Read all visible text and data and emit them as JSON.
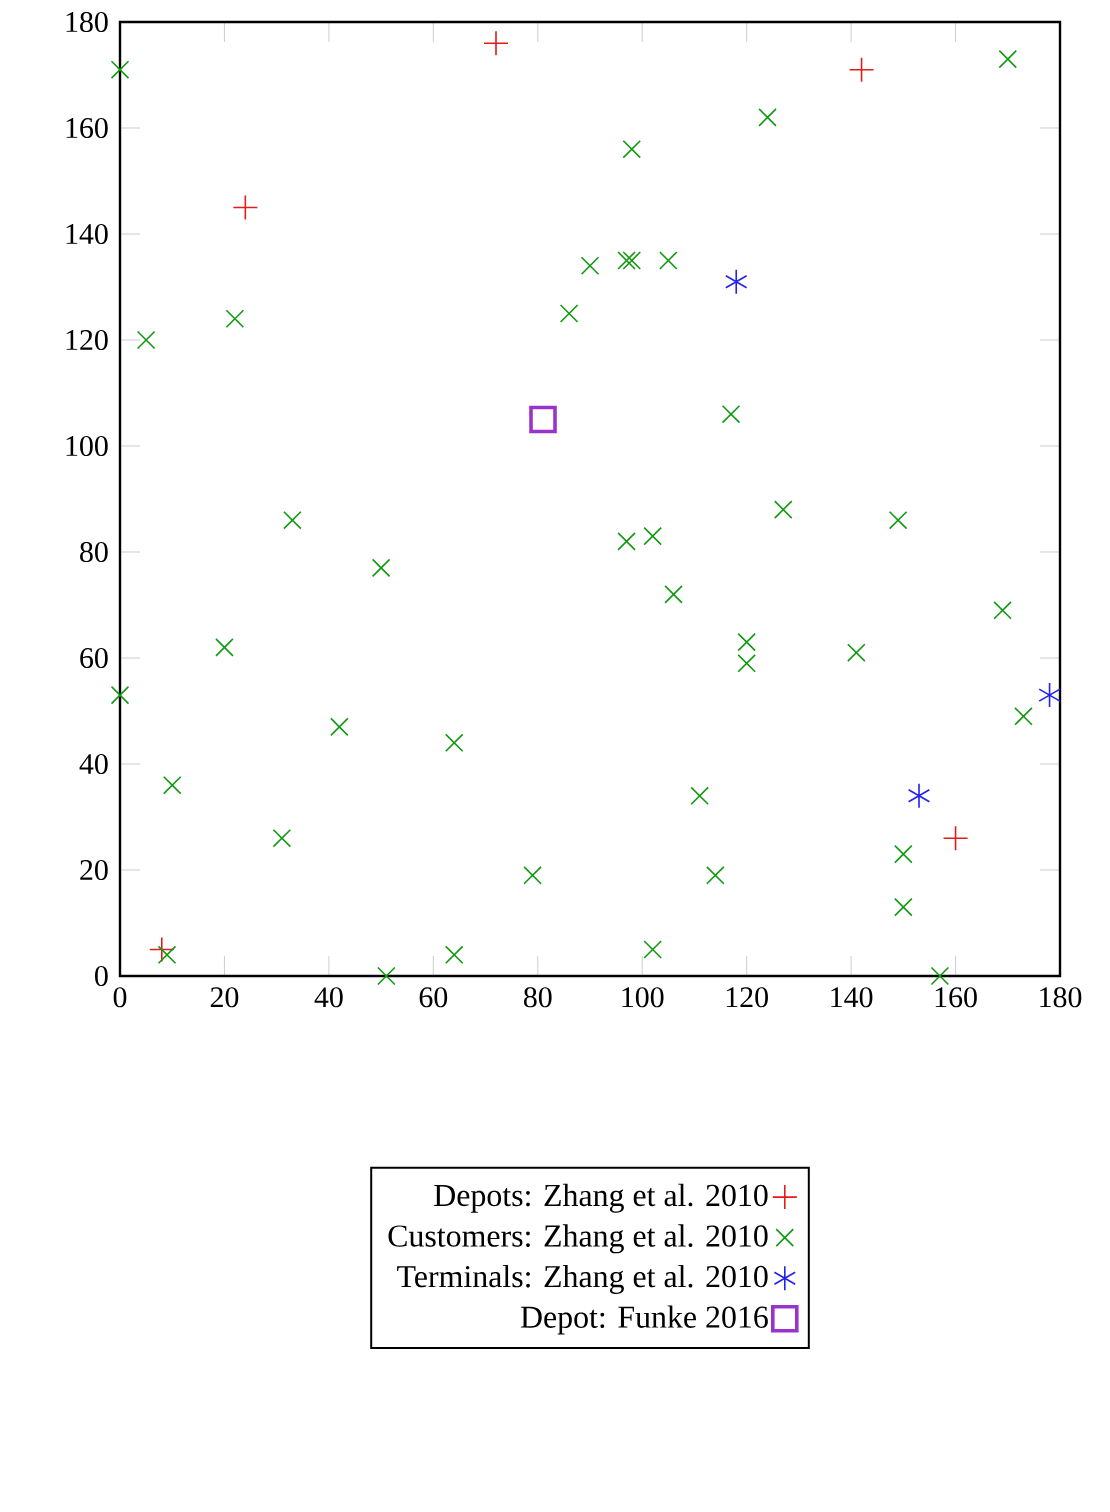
{
  "chart_data": {
    "type": "scatter",
    "series": [
      {
        "name": "Depots: Zhang et al. 2010",
        "color": "#e41a1c",
        "marker": "plus",
        "x": [
          72,
          24,
          142,
          160,
          8
        ],
        "values": [
          176,
          145,
          171,
          26,
          5
        ]
      },
      {
        "name": "Customers: Zhang et al. 2010",
        "color": "#119911",
        "marker": "cross",
        "x": [
          0,
          5,
          22,
          33,
          50,
          20,
          0,
          10,
          42,
          31,
          64,
          79,
          64,
          51,
          9,
          86,
          90,
          97,
          98,
          98,
          105,
          124,
          170,
          117,
          97,
          102,
          106,
          127,
          149,
          120,
          120,
          141,
          169,
          173,
          111,
          114,
          102,
          150,
          150,
          157
        ],
        "values": [
          171,
          120,
          124,
          86,
          77,
          62,
          53,
          36,
          47,
          26,
          44,
          19,
          4,
          0,
          4,
          125,
          134,
          135,
          135,
          156,
          135,
          162,
          173,
          106,
          82,
          83,
          72,
          88,
          86,
          63,
          59,
          61,
          69,
          49,
          34,
          19,
          5,
          23,
          13,
          0
        ]
      },
      {
        "name": "Terminals: Zhang et al. 2010",
        "color": "#2222ee",
        "x": [
          118,
          153,
          178
        ],
        "values": [
          131,
          34,
          53
        ]
      },
      {
        "name": "Depot: Funke 2016",
        "color": "#9933cc",
        "marker": "square",
        "x": [
          81
        ],
        "values": [
          105
        ]
      }
    ],
    "xlim": [
      0,
      180
    ],
    "ylim": [
      0,
      180
    ],
    "xticks": [
      0,
      20,
      40,
      60,
      80,
      100,
      120,
      140,
      160,
      180
    ],
    "yticks": [
      0,
      20,
      40,
      60,
      80,
      100,
      120,
      140,
      160,
      180
    ],
    "grid": false,
    "legend": "bottom"
  }
}
